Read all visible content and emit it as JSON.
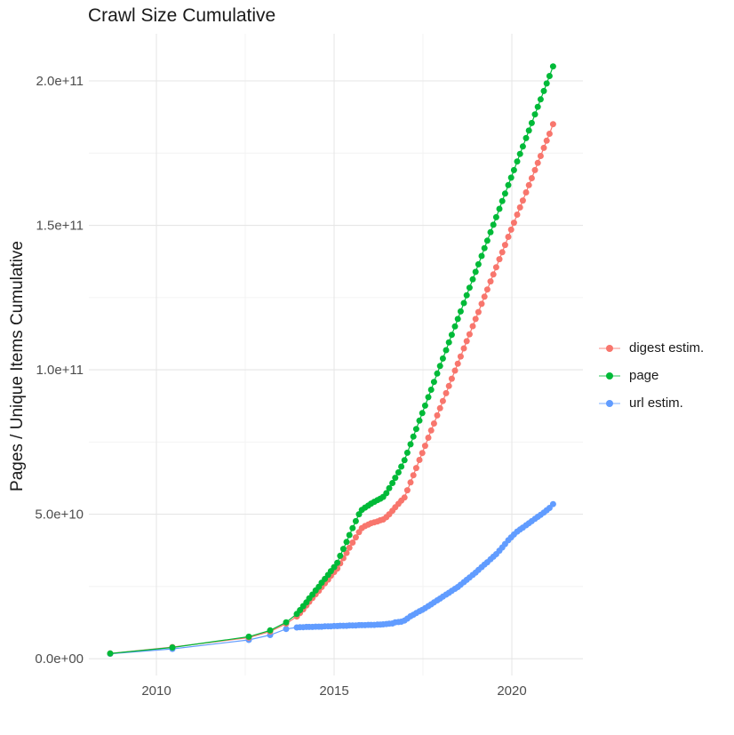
{
  "chart_data": {
    "type": "line",
    "title": "Crawl Size Cumulative",
    "xlabel": "",
    "ylabel": "Pages / Unique Items Cumulative",
    "grid": true,
    "legend_position": "right",
    "x_ticks": [
      2010,
      2015,
      2020
    ],
    "x_tick_labels": [
      "2010",
      "2015",
      "2020"
    ],
    "x_minor_ticks": [
      2012.5,
      2017.5
    ],
    "y_ticks": [
      0,
      50,
      100,
      150,
      200
    ],
    "y_tick_labels": [
      "0.0e+00",
      "5.0e+10",
      "1.0e+11",
      "1.5e+11",
      "2.0e+11"
    ],
    "y_minor_ticks": [
      25,
      75,
      125,
      175
    ],
    "xlim": [
      2008.1,
      2022.0
    ],
    "ylim": [
      -5.8,
      216.3
    ],
    "y_value_unit": "billions of pages (1e9); tick labels shown in scientific notation",
    "x": [
      2008.7,
      2010.45,
      2012.6,
      2013.2,
      2013.65,
      2013.95,
      2014.04,
      2014.13,
      2014.22,
      2014.3,
      2014.39,
      2014.48,
      2014.57,
      2014.65,
      2014.74,
      2014.83,
      2014.91,
      2015.0,
      2015.09,
      2015.17,
      2015.26,
      2015.35,
      2015.43,
      2015.52,
      2015.61,
      2015.7,
      2015.78,
      2015.87,
      2015.96,
      2016.04,
      2016.13,
      2016.22,
      2016.3,
      2016.38,
      2016.47,
      2016.55,
      2016.64,
      2016.72,
      2016.81,
      2016.89,
      2016.98,
      2017.06,
      2017.15,
      2017.23,
      2017.31,
      2017.4,
      2017.48,
      2017.56,
      2017.65,
      2017.73,
      2017.81,
      2017.9,
      2017.98,
      2018.06,
      2018.15,
      2018.23,
      2018.31,
      2018.4,
      2018.48,
      2018.56,
      2018.65,
      2018.73,
      2018.81,
      2018.9,
      2018.98,
      2019.06,
      2019.15,
      2019.23,
      2019.31,
      2019.4,
      2019.48,
      2019.56,
      2019.65,
      2019.73,
      2019.81,
      2019.9,
      2019.98,
      2020.06,
      2020.15,
      2020.23,
      2020.31,
      2020.4,
      2020.48,
      2020.56,
      2020.65,
      2020.73,
      2020.81,
      2020.9,
      2020.98,
      2021.06,
      2021.16
    ],
    "series": [
      {
        "name": "digest estim.",
        "color": "#F8766D",
        "zorder": 2,
        "values": [
          1.8,
          4,
          7.3,
          9.4,
          12.1,
          14.6,
          15.8,
          17.1,
          18.4,
          19.7,
          21,
          22.3,
          23.5,
          24.8,
          26.1,
          27.4,
          28.7,
          30,
          31.2,
          33,
          34.8,
          36.6,
          38.4,
          40.2,
          42,
          43.8,
          45.2,
          45.9,
          46.4,
          46.9,
          47.2,
          47.5,
          47.9,
          48.2,
          49,
          50,
          51.2,
          52.4,
          53.6,
          54.7,
          55.8,
          58.3,
          61,
          63.5,
          66,
          68.8,
          71.2,
          73.7,
          76.5,
          79,
          81.4,
          84.2,
          86.7,
          89.2,
          91.9,
          94.4,
          96.9,
          99.7,
          102.1,
          104.6,
          107.4,
          109.9,
          112.3,
          115.1,
          117.6,
          120,
          122.8,
          125.3,
          127.8,
          130.6,
          133,
          135.5,
          138.3,
          140.7,
          143.2,
          146,
          148.5,
          150.9,
          153.7,
          156.2,
          158.6,
          161.4,
          163.9,
          166.3,
          169.1,
          171.6,
          174,
          176.8,
          179.3,
          181.7,
          185
        ]
      },
      {
        "name": "page",
        "color": "#00BA38",
        "zorder": 3,
        "values": [
          1.8,
          3.9,
          7.6,
          9.8,
          12.6,
          15.5,
          16.8,
          18.2,
          19.5,
          20.9,
          22.2,
          23.6,
          24.9,
          26.3,
          27.6,
          29,
          30.3,
          31.7,
          33.2,
          35.6,
          38,
          40.4,
          42.8,
          45.2,
          47.6,
          50,
          51.5,
          52.3,
          53,
          53.7,
          54.3,
          54.9,
          55.4,
          56,
          57.3,
          59,
          60.8,
          62.6,
          64.5,
          66.5,
          68.7,
          71.3,
          74.2,
          76.9,
          79.5,
          82.4,
          85,
          87.6,
          90.5,
          93.1,
          95.8,
          98.7,
          101.3,
          103.9,
          106.8,
          109.5,
          112.1,
          115,
          117.6,
          120.2,
          123.1,
          125.8,
          128.4,
          131.3,
          133.9,
          136.5,
          139.4,
          142.1,
          144.7,
          147.6,
          150.2,
          152.8,
          155.7,
          158.4,
          161,
          163.9,
          166.5,
          169.1,
          172.1,
          174.7,
          177.3,
          180.2,
          182.8,
          185.4,
          188.4,
          191,
          193.6,
          196.5,
          199.1,
          201.7,
          205
        ]
      },
      {
        "name": "url estim.",
        "color": "#619CFF",
        "zorder": 1,
        "values": [
          1.7,
          3.4,
          6.5,
          8.2,
          10.3,
          10.8,
          10.9,
          10.9,
          11,
          11,
          11,
          11.1,
          11.1,
          11.1,
          11.2,
          11.2,
          11.2,
          11.3,
          11.3,
          11.4,
          11.4,
          11.4,
          11.5,
          11.5,
          11.5,
          11.6,
          11.6,
          11.6,
          11.7,
          11.7,
          11.7,
          11.8,
          11.8,
          11.9,
          12,
          12.1,
          12.2,
          12.6,
          12.7,
          12.8,
          13.2,
          13.9,
          14.7,
          15.2,
          15.8,
          16.4,
          16.9,
          17.5,
          18.2,
          18.8,
          19.5,
          20.2,
          20.8,
          21.5,
          22.2,
          22.8,
          23.5,
          24.2,
          24.8,
          25.6,
          26.5,
          27.3,
          28.1,
          29,
          29.8,
          30.7,
          31.7,
          32.6,
          33.4,
          34.4,
          35.3,
          36.2,
          37.4,
          38.5,
          39.7,
          41,
          42,
          43,
          44,
          44.7,
          45.4,
          46.2,
          46.9,
          47.6,
          48.4,
          49.1,
          49.8,
          50.6,
          51.4,
          52.2,
          53.5
        ]
      }
    ],
    "style": {
      "grid_major_color": "#E6E6E6",
      "grid_minor_color": "#F2F2F2",
      "background": "#FFFFFF",
      "point_radius": 3.5
    }
  }
}
